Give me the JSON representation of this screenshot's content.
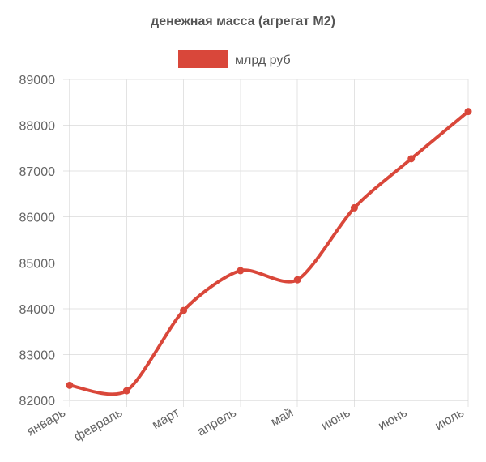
{
  "chart_data": {
    "type": "line",
    "title": "денежная масса (агрегат М2)",
    "categories": [
      "январь",
      "февраль",
      "март",
      "апрель",
      "май",
      "июнь",
      "июнь",
      "июль"
    ],
    "series": [
      {
        "name": "млрд руб",
        "color": "#d9473a",
        "values": [
          82330,
          82210,
          83960,
          84830,
          84630,
          86200,
          87270,
          88300
        ]
      }
    ],
    "yticks": [
      82000,
      83000,
      84000,
      85000,
      86000,
      87000,
      88000,
      89000
    ],
    "ylim": [
      82000,
      89000
    ],
    "grid": true,
    "legend_position": "top-center",
    "xlabel": "",
    "ylabel": ""
  }
}
